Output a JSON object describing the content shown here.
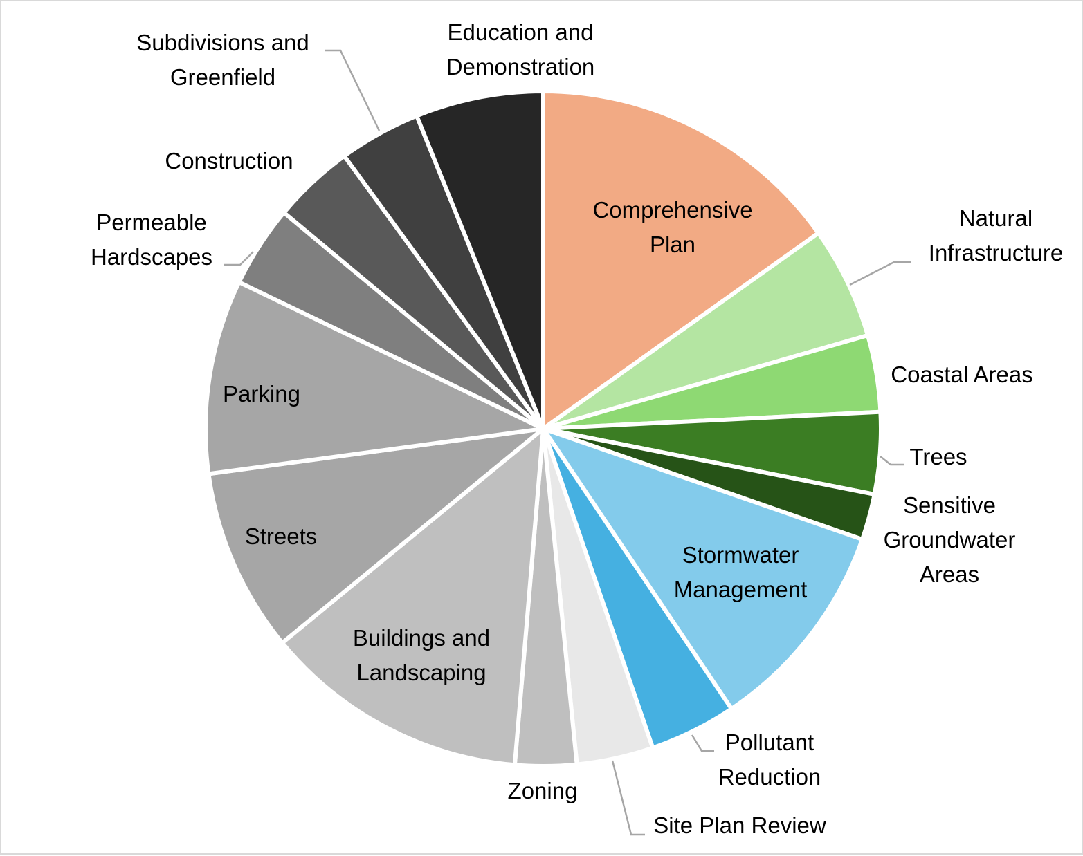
{
  "chart_data": {
    "type": "pie",
    "title": "",
    "start_angle_deg": 0,
    "direction": "clockwise",
    "slices": [
      {
        "label": "Comprehensive Plan",
        "value": 15.5,
        "color": "#f2aa84"
      },
      {
        "label": "Natural Infrastructure",
        "value": 5.5,
        "color": "#b4e5a2"
      },
      {
        "label": "Coastal Areas",
        "value": 3.75,
        "color": "#8ed973"
      },
      {
        "label": "Trees",
        "value": 4.0,
        "color": "#3b7d23"
      },
      {
        "label": "Sensitive Groundwater Areas",
        "value": 2.25,
        "color": "#265317"
      },
      {
        "label": "Stormwater Management",
        "value": 10.5,
        "color": "#83cbeb"
      },
      {
        "label": "Pollutant Reduction",
        "value": 4.25,
        "color": "#45b0e1"
      },
      {
        "label": "Site Plan Review",
        "value": 3.75,
        "color": "#e8e8e8"
      },
      {
        "label": "Zoning",
        "value": 3.0,
        "color": "#bfbfbf"
      },
      {
        "label": "Buildings and Landscaping",
        "value": 13.0,
        "color": "#bfbfbf"
      },
      {
        "label": "Streets",
        "value": 9.0,
        "color": "#a6a6a6"
      },
      {
        "label": "Parking",
        "value": 9.5,
        "color": "#a6a6a6"
      },
      {
        "label": "Permeable Hardscapes",
        "value": 4.0,
        "color": "#7f7f7f"
      },
      {
        "label": "Construction",
        "value": 4.0,
        "color": "#595959"
      },
      {
        "label": "Subdivisions and Greenfield",
        "value": 4.0,
        "color": "#404040"
      },
      {
        "label": "Education and Demonstration",
        "value": 6.25,
        "color": "#262626"
      }
    ]
  }
}
